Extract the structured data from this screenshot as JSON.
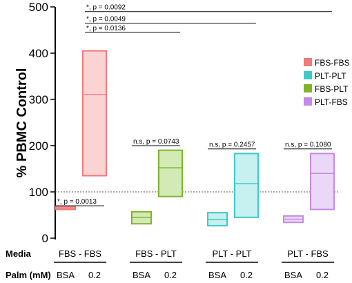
{
  "chart_data": {
    "type": "floating-bar",
    "ylabel": "% PBMC Control",
    "ylim": [
      0,
      500
    ],
    "yticks": [
      0,
      100,
      200,
      300,
      400,
      500
    ],
    "reference_line": 100,
    "legend_placement": "right",
    "series": [
      {
        "name": "FBS-FBS",
        "color": "#f07b7b",
        "fill": "#fbd3d3",
        "boxes": [
          {
            "dose": "BSA",
            "min": 62,
            "mean": 65,
            "max": 68
          },
          {
            "dose": "0.2",
            "min": 135,
            "mean": 310,
            "max": 405
          }
        ]
      },
      {
        "name": "PLT-PLT",
        "color": "#3fc9c9",
        "fill": "#c7f0f0",
        "boxes": [
          {
            "dose": "BSA",
            "min": 27,
            "mean": 40,
            "max": 55
          },
          {
            "dose": "0.2",
            "min": 45,
            "mean": 118,
            "max": 183
          }
        ]
      },
      {
        "name": "FBS-PLT",
        "color": "#7db52b",
        "fill": "#d4eab6",
        "boxes": [
          {
            "dose": "BSA",
            "min": 31,
            "mean": 45,
            "max": 57
          },
          {
            "dose": "0.2",
            "min": 90,
            "mean": 152,
            "max": 190
          }
        ]
      },
      {
        "name": "PLT-FBS",
        "color": "#c58ae6",
        "fill": "#ebd7f7",
        "boxes": [
          {
            "dose": "BSA",
            "min": 34,
            "mean": 41,
            "max": 48
          },
          {
            "dose": "0.2",
            "min": 62,
            "mean": 140,
            "max": 183
          }
        ]
      }
    ],
    "groups": [
      {
        "media": "FBS - FBS",
        "series": "FBS-FBS"
      },
      {
        "media": "FBS - PLT",
        "series": "FBS-PLT"
      },
      {
        "media": "PLT - PLT",
        "series": "PLT-PLT"
      },
      {
        "media": "PLT - FBS",
        "series": "PLT-FBS"
      }
    ],
    "row_labels": {
      "media": "Media",
      "palm": "Palm (mM)"
    },
    "significance": [
      {
        "label": "*, p = 0.0013",
        "from": "FBS-FBS BSA",
        "to": "FBS-FBS 0.2",
        "level": 70
      },
      {
        "label": "*, p = 0.0136",
        "from": "FBS-FBS 0.2",
        "to": "FBS-PLT 0.2",
        "level": 445
      },
      {
        "label": "*, p = 0.0049",
        "from": "FBS-FBS 0.2",
        "to": "PLT-PLT 0.2",
        "level": 465
      },
      {
        "label": "*, p = 0.0092",
        "from": "FBS-FBS 0.2",
        "to": "PLT-FBS 0.2",
        "level": 490
      },
      {
        "label": "n.s, p = 0.0743",
        "from": "FBS-PLT BSA",
        "to": "FBS-PLT 0.2",
        "level": 200
      },
      {
        "label": "n.s, p = 0.2457",
        "from": "PLT-PLT BSA",
        "to": "PLT-PLT 0.2",
        "level": 193
      },
      {
        "label": "n.s, p = 0.1080",
        "from": "PLT-FBS BSA",
        "to": "PLT-FBS 0.2",
        "level": 193
      }
    ]
  }
}
